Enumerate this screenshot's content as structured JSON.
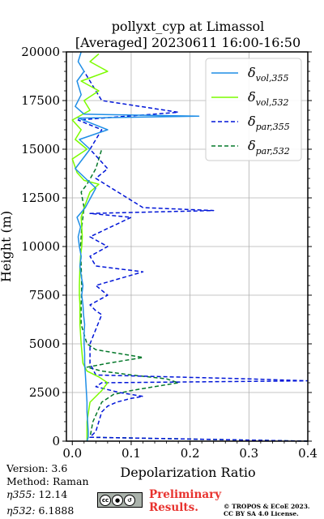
{
  "chart_data": {
    "type": "line",
    "title": "pollyxt_cyp at Limassol",
    "subtitle": "[Averaged] 20230611 16:00-16:50",
    "xlabel": "Depolarization Ratio",
    "ylabel": "Height (m)",
    "xlim": [
      -0.01,
      0.4
    ],
    "ylim": [
      0,
      20000
    ],
    "xticks": [
      "0.0",
      "0.1",
      "0.2",
      "0.3",
      "0.4"
    ],
    "yticks": [
      "0",
      "2500",
      "5000",
      "7500",
      "10000",
      "12500",
      "15000",
      "17500",
      "20000"
    ],
    "grid": true,
    "legend_position": "top-right",
    "series": [
      {
        "name": "δvol,355",
        "label_main": "δ",
        "label_sub": "vol,355",
        "color": "#1f8ee6",
        "dash": "solid",
        "x": [
          0.025,
          0.027,
          0.027,
          0.026,
          0.025,
          0.025,
          0.024,
          0.023,
          0.022,
          0.021,
          0.021,
          0.02,
          0.02,
          0.021,
          0.019,
          0.018,
          0.016,
          0.018,
          0.015,
          0.013,
          0.015,
          0.012,
          0.01,
          0.014,
          0.008,
          0.022,
          0.04,
          0.005,
          0.03,
          0.012,
          0.06,
          0.01,
          0.215,
          0.02,
          0.005,
          0.015,
          0.008,
          0.02,
          0.01,
          0.015
        ],
        "y": [
          0,
          200,
          500,
          1000,
          1500,
          2000,
          2500,
          3000,
          3500,
          4000,
          4500,
          5000,
          5500,
          6000,
          6500,
          7000,
          7500,
          8000,
          8500,
          9000,
          9500,
          10000,
          10500,
          11000,
          11500,
          12000,
          13000,
          14000,
          15000,
          15500,
          16000,
          16600,
          16700,
          16800,
          17200,
          17800,
          18500,
          19000,
          19500,
          20000
        ]
      },
      {
        "name": "δvol,532",
        "label_main": "δ",
        "label_sub": "vol,532",
        "color": "#7cfc00",
        "dash": "solid",
        "x": [
          0.025,
          0.025,
          0.03,
          0.05,
          0.06,
          0.045,
          0.025,
          0.018,
          0.015,
          0.013,
          0.013,
          0.012,
          0.012,
          0.013,
          0.014,
          0.016,
          0.017,
          0.016,
          0.015,
          0.02,
          0.03,
          0.045,
          0.02,
          0.008,
          0.0,
          0.025,
          0.005,
          0.015,
          0.0,
          0.03,
          0.02,
          0.045,
          0.015,
          0.06,
          0.03,
          0.045
        ],
        "y": [
          0,
          1000,
          2000,
          2600,
          3000,
          3300,
          3600,
          4000,
          5000,
          6000,
          7000,
          7500,
          8000,
          9000,
          9500,
          10000,
          10500,
          11000,
          11500,
          12000,
          12800,
          13200,
          13400,
          13800,
          14500,
          15000,
          15500,
          16000,
          16500,
          17000,
          17500,
          18000,
          18500,
          19000,
          19500,
          19900
        ]
      },
      {
        "name": "δpar,355",
        "label_main": "δ",
        "label_sub": "par,355",
        "color": "#0015d8",
        "dash": "dashed",
        "x": [
          0.4,
          0.03,
          0.04,
          0.045,
          0.05,
          0.06,
          0.075,
          0.1,
          0.12,
          0.08,
          0.04,
          0.05,
          0.4,
          0.3,
          0.04,
          0.03,
          0.03,
          0.05,
          0.04,
          0.03,
          0.06,
          0.04,
          0.12,
          0.04,
          0.03,
          0.06,
          0.03,
          0.1,
          0.03,
          0.24,
          0.12,
          0.04,
          0.06,
          0.03,
          0.05,
          0.01,
          0.18,
          0.05,
          0.02
        ],
        "y": [
          0,
          200,
          500,
          1000,
          1500,
          1800,
          2000,
          2200,
          2300,
          2500,
          2800,
          3000,
          3100,
          3200,
          3400,
          4000,
          5000,
          6500,
          6700,
          7000,
          7500,
          8000,
          8700,
          9000,
          9500,
          10000,
          10500,
          11500,
          11700,
          11850,
          12000,
          13500,
          14000,
          15000,
          16000,
          16500,
          16900,
          17500,
          19000
        ]
      },
      {
        "name": "δpar,532",
        "label_main": "δ",
        "label_sub": "par,532",
        "color": "#04782a",
        "dash": "dashed",
        "x": [
          0.4,
          0.03,
          0.035,
          0.05,
          0.07,
          0.1,
          0.14,
          0.18,
          0.16,
          0.1,
          0.05,
          0.025,
          0.06,
          0.1,
          0.12,
          0.08,
          0.04,
          0.025,
          0.015,
          0.015,
          0.016,
          0.015,
          0.014,
          0.016,
          0.02,
          0.015,
          0.025,
          0.04,
          0.05
        ],
        "y": [
          0,
          200,
          1000,
          2000,
          2400,
          2600,
          2800,
          3000,
          3200,
          3400,
          3600,
          3800,
          4000,
          4200,
          4300,
          4500,
          4700,
          5000,
          6000,
          7000,
          8000,
          9000,
          10000,
          11000,
          12000,
          12800,
          13200,
          14000,
          15000
        ]
      }
    ]
  },
  "info": {
    "version": "Version: 3.6",
    "method": "Method: Raman",
    "eta355_label": "η355:",
    "eta355_value": "12.14",
    "eta532_label": "η532:",
    "eta532_value": "6.1888"
  },
  "license": {
    "badge_text": "cc",
    "preliminary_line1": "Preliminary",
    "preliminary_line2": "Results.",
    "copyright_line1": "© TROPOS & ECoE 2023.",
    "copyright_line2": "CC BY SA 4.0 License."
  }
}
